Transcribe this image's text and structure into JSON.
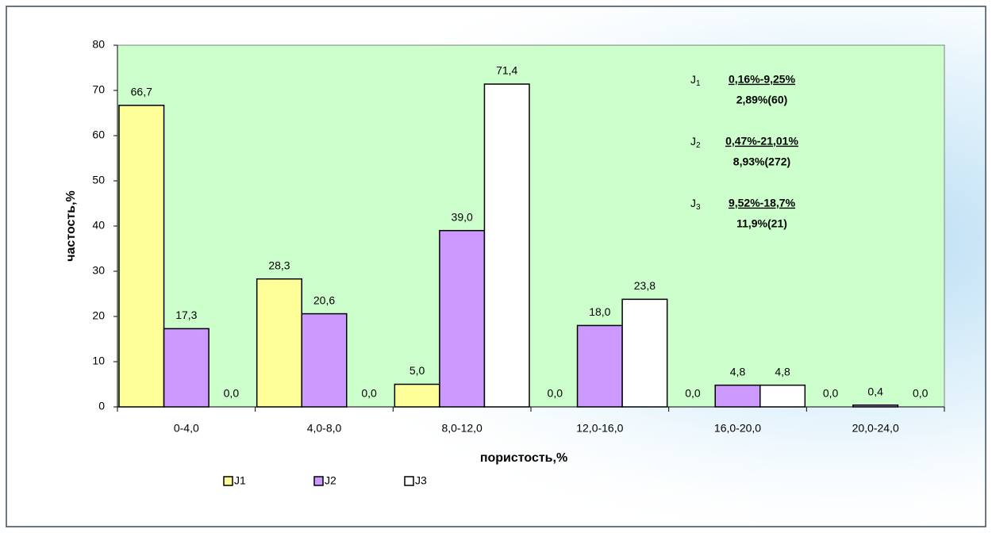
{
  "chart_data": {
    "type": "bar",
    "x_label": "пористость,%",
    "y_label": "частость,%",
    "categories": [
      "0-4,0",
      "4,0-8,0",
      "8,0-12,0",
      "12,0-16,0",
      "16,0-20,0",
      "20,0-24,0"
    ],
    "series": [
      {
        "name": "J1",
        "color": "#ffff99",
        "values": [
          66.7,
          28.3,
          5.0,
          0.0,
          0.0,
          0.0
        ],
        "value_labels": [
          "66,7",
          "28,3",
          "5,0",
          "0,0",
          "0,0",
          "0,0"
        ]
      },
      {
        "name": "J2",
        "color": "#cc99ff",
        "values": [
          17.3,
          20.6,
          39.0,
          18.0,
          4.8,
          0.4
        ],
        "value_labels": [
          "17,3",
          "20,6",
          "39,0",
          "18,0",
          "4,8",
          "0,4"
        ]
      },
      {
        "name": "J3",
        "color": "#ffffff",
        "values": [
          0.0,
          0.0,
          71.4,
          23.8,
          4.8,
          0.0
        ],
        "value_labels": [
          "0,0",
          "0,0",
          "71,4",
          "23,8",
          "4,8",
          "0,0"
        ]
      }
    ],
    "ylim": [
      0,
      80
    ],
    "yticks": [
      0,
      10,
      20,
      30,
      40,
      50,
      60,
      70,
      80
    ],
    "plot_color": "#ccffcc",
    "annotations": [
      {
        "name": "J",
        "subscript": "1",
        "range": "0,16%-9,25%",
        "summary": "2,89%(60)"
      },
      {
        "name": "J",
        "subscript": "2",
        "range": "0,47%-21,01%",
        "summary": "8,93%(272)"
      },
      {
        "name": "J",
        "subscript": "3",
        "range": "9,52%-18,7%",
        "summary": "11,9%(21)"
      }
    ]
  }
}
